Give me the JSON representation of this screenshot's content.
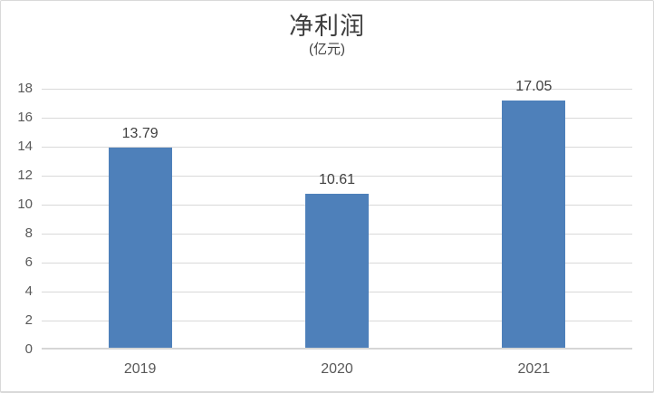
{
  "chart_data": {
    "type": "bar",
    "title": "净利润",
    "subtitle": "(亿元)",
    "categories": [
      "2019",
      "2020",
      "2021"
    ],
    "values": [
      13.79,
      10.61,
      17.05
    ],
    "value_labels": [
      "13.79",
      "10.61",
      "17.05"
    ],
    "ylabel": "",
    "xlabel": "",
    "ylim": [
      0,
      18
    ],
    "ytick_step": 2,
    "yticks": [
      "0",
      "2",
      "4",
      "6",
      "8",
      "10",
      "12",
      "14",
      "16",
      "18"
    ],
    "legend": "none",
    "grid": "horizontal",
    "colors": {
      "bar": "#4E80BA",
      "gridline": "#D9D9D9",
      "axis_line": "#D6D6D6",
      "title_text": "#3F3F3F",
      "tick_text": "#595959",
      "value_text": "#404040",
      "card_border": "#D9D9D9",
      "background": "#FFFFFF"
    }
  }
}
